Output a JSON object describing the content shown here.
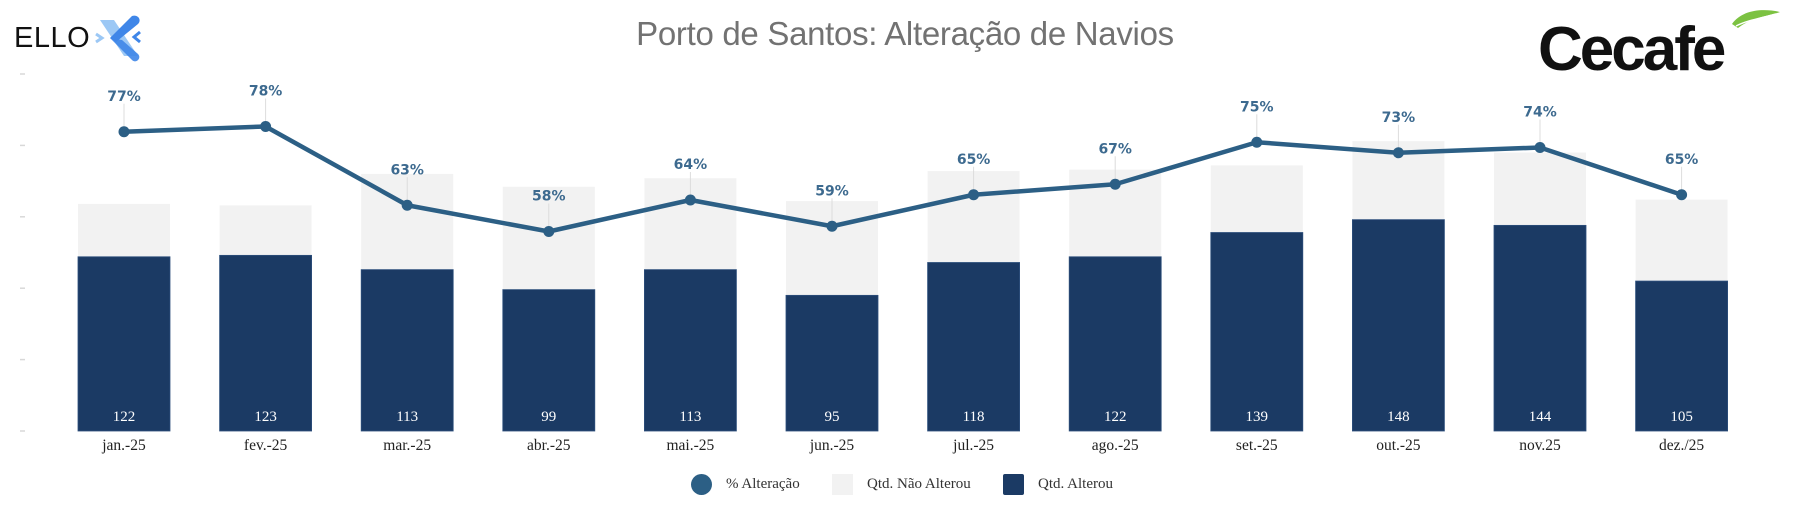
{
  "logos": {
    "left": "ELLO",
    "right": "Cecafe"
  },
  "chart_data": {
    "type": "bar",
    "stacked": true,
    "title": "Porto de Santos: Alteração de Navios",
    "xlabel": "",
    "ylabel": "",
    "categories": [
      "jan.-25",
      "fev.-25",
      "mar.-25",
      "abr.-25",
      "mai.-25",
      "jun.-25",
      "jul.-25",
      "ago.-25",
      "set.-25",
      "out.-25",
      "nov.25",
      "dez./25"
    ],
    "series": [
      {
        "name": "Qtd. Alterou",
        "type": "bar",
        "color": "#1b3a64",
        "values": [
          122,
          123,
          113,
          99,
          113,
          95,
          118,
          122,
          139,
          148,
          144,
          105
        ],
        "labels": [
          "122",
          "123",
          "113",
          "99",
          "113",
          "95",
          "118",
          "122",
          "139",
          "148",
          "144",
          "105"
        ]
      },
      {
        "name": "Qtd. Não Alterou",
        "type": "bar",
        "color": "#f2f2f2",
        "values": [
          37,
          35,
          67,
          72,
          64,
          66,
          64,
          61,
          47,
          55,
          51,
          57
        ]
      },
      {
        "name": "% Alteração",
        "type": "line",
        "axis": "secondary",
        "color": "#2c5f85",
        "values": [
          77,
          78,
          63,
          58,
          64,
          59,
          65,
          67,
          75,
          73,
          74,
          65
        ],
        "labels": [
          "77%",
          "78%",
          "63%",
          "58%",
          "64%",
          "59%",
          "65%",
          "67%",
          "75%",
          "73%",
          "74%",
          "65%"
        ]
      }
    ],
    "ylim": [
      0,
      250
    ],
    "y2lim": [
      20,
      88
    ],
    "grid": false,
    "legend": {
      "position": "bottom",
      "entries": [
        "% Alteração",
        "Qtd. Não Alterou",
        "Qtd. Alterou"
      ]
    }
  }
}
